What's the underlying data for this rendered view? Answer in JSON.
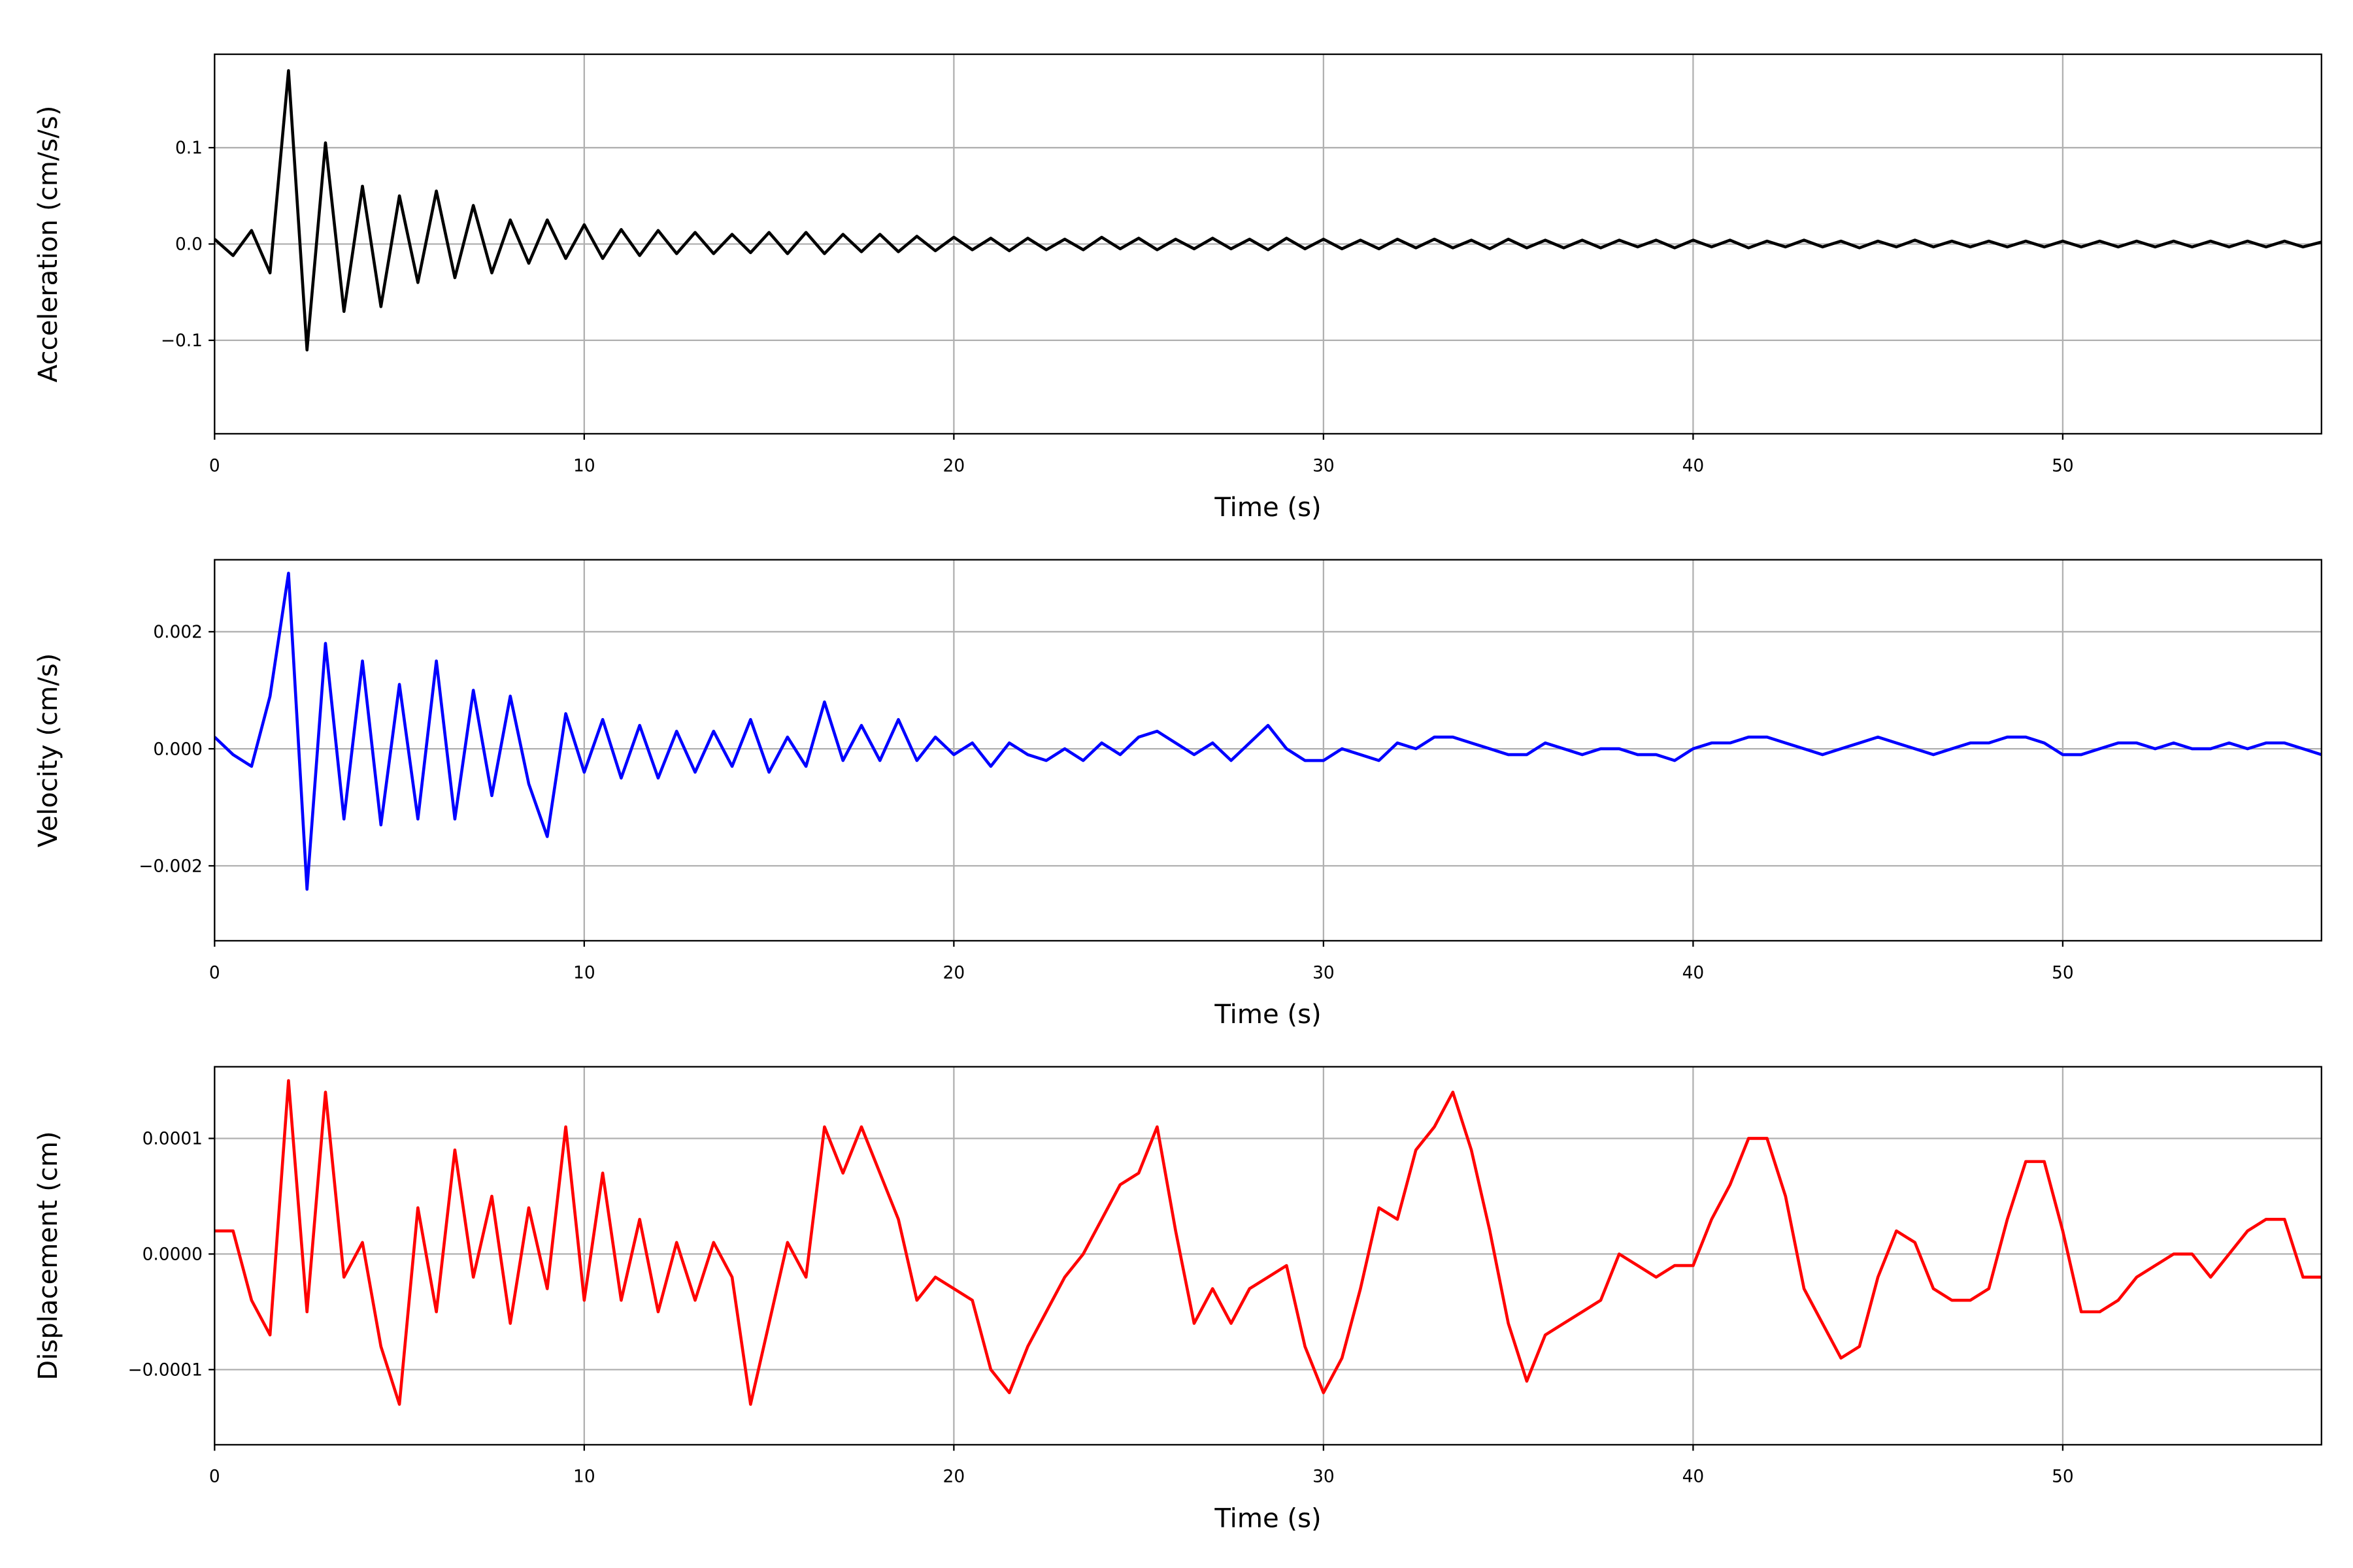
{
  "chart_data": [
    {
      "type": "line",
      "x_label": "Time (s)",
      "y_label": "Acceleration (cm/s/s)",
      "color": "#000000",
      "grid": true,
      "xlim": [
        0,
        57
      ],
      "ylim": [
        -0.197,
        0.197
      ],
      "xticks": [
        0,
        10,
        20,
        30,
        40,
        50
      ],
      "yticks": [
        {
          "value": -0.1,
          "label": "−0.1"
        },
        {
          "value": 0,
          "label": "0.0"
        },
        0.1
      ],
      "x": [
        0,
        0.5,
        1,
        1.5,
        2,
        2.5,
        3,
        3.5,
        4,
        4.5,
        5,
        5.5,
        6,
        6.5,
        7,
        7.5,
        8,
        8.5,
        9,
        9.5,
        10,
        10.5,
        11,
        11.5,
        12,
        12.5,
        13,
        13.5,
        14,
        14.5,
        15,
        15.5,
        16,
        16.5,
        17,
        17.5,
        18,
        18.5,
        19,
        19.5,
        20,
        20.5,
        21,
        21.5,
        22,
        22.5,
        23,
        23.5,
        24,
        24.5,
        25,
        25.5,
        26,
        26.5,
        27,
        27.5,
        28,
        28.5,
        29,
        29.5,
        30,
        30.5,
        31,
        31.5,
        32,
        32.5,
        33,
        33.5,
        34,
        34.5,
        35,
        35.5,
        36,
        36.5,
        37,
        37.5,
        38,
        38.5,
        39,
        39.5,
        40,
        40.5,
        41,
        41.5,
        42,
        42.5,
        43,
        43.5,
        44,
        44.5,
        45,
        45.5,
        46,
        46.5,
        47,
        47.5,
        48,
        48.5,
        49,
        49.5,
        50,
        50.5,
        51,
        51.5,
        52,
        52.5,
        53,
        53.5,
        54,
        54.5,
        55,
        55.5,
        56,
        56.5,
        57
      ],
      "values": [
        0.005,
        -0.012,
        0.014,
        -0.03,
        0.18,
        -0.11,
        0.105,
        -0.07,
        0.06,
        -0.065,
        0.05,
        -0.04,
        0.055,
        -0.035,
        0.04,
        -0.03,
        0.025,
        -0.02,
        0.025,
        -0.015,
        0.02,
        -0.015,
        0.015,
        -0.012,
        0.014,
        -0.01,
        0.012,
        -0.01,
        0.01,
        -0.009,
        0.012,
        -0.01,
        0.012,
        -0.01,
        0.01,
        -0.008,
        0.01,
        -0.008,
        0.008,
        -0.007,
        0.007,
        -0.006,
        0.006,
        -0.007,
        0.006,
        -0.006,
        0.005,
        -0.006,
        0.007,
        -0.005,
        0.006,
        -0.006,
        0.005,
        -0.005,
        0.006,
        -0.005,
        0.005,
        -0.006,
        0.006,
        -0.005,
        0.005,
        -0.005,
        0.004,
        -0.005,
        0.005,
        -0.004,
        0.005,
        -0.004,
        0.004,
        -0.005,
        0.005,
        -0.004,
        0.004,
        -0.004,
        0.004,
        -0.004,
        0.004,
        -0.003,
        0.004,
        -0.004,
        0.004,
        -0.003,
        0.004,
        -0.004,
        0.003,
        -0.003,
        0.004,
        -0.003,
        0.003,
        -0.004,
        0.003,
        -0.003,
        0.004,
        -0.003,
        0.003,
        -0.003,
        0.003,
        -0.003,
        0.003,
        -0.003,
        0.003,
        -0.003,
        0.003,
        -0.003,
        0.003,
        -0.003,
        0.003,
        -0.003,
        0.003,
        -0.003,
        0.003,
        -0.003,
        0.003,
        -0.003,
        0.002
      ]
    },
    {
      "type": "line",
      "x_label": "Time (s)",
      "y_label": "Velocity (cm/s)",
      "color": "#0000ff",
      "grid": true,
      "xlim": [
        0,
        57
      ],
      "ylim": [
        -0.00328,
        0.00323
      ],
      "xticks": [
        0,
        10,
        20,
        30,
        40,
        50
      ],
      "yticks": [
        {
          "value": -0.002,
          "label": "−0.002"
        },
        {
          "value": 0,
          "label": "0.000"
        },
        0.002
      ],
      "x": [
        0,
        0.5,
        1,
        1.5,
        2,
        2.5,
        3,
        3.5,
        4,
        4.5,
        5,
        5.5,
        6,
        6.5,
        7,
        7.5,
        8,
        8.5,
        9,
        9.5,
        10,
        10.5,
        11,
        11.5,
        12,
        12.5,
        13,
        13.5,
        14,
        14.5,
        15,
        15.5,
        16,
        16.5,
        17,
        17.5,
        18,
        18.5,
        19,
        19.5,
        20,
        20.5,
        21,
        21.5,
        22,
        22.5,
        23,
        23.5,
        24,
        24.5,
        25,
        25.5,
        26,
        26.5,
        27,
        27.5,
        28,
        28.5,
        29,
        29.5,
        30,
        30.5,
        31,
        31.5,
        32,
        32.5,
        33,
        33.5,
        34,
        34.5,
        35,
        35.5,
        36,
        36.5,
        37,
        37.5,
        38,
        38.5,
        39,
        39.5,
        40,
        40.5,
        41,
        41.5,
        42,
        42.5,
        43,
        43.5,
        44,
        44.5,
        45,
        45.5,
        46,
        46.5,
        47,
        47.5,
        48,
        48.5,
        49,
        49.5,
        50,
        50.5,
        51,
        51.5,
        52,
        52.5,
        53,
        53.5,
        54,
        54.5,
        55,
        55.5,
        56,
        56.5,
        57
      ],
      "values": [
        0.0002,
        -0.0001,
        -0.0003,
        0.0009,
        0.003,
        -0.0024,
        0.0018,
        -0.0012,
        0.0015,
        -0.0013,
        0.0011,
        -0.0012,
        0.0015,
        -0.0012,
        0.001,
        -0.0008,
        0.0009,
        -0.0006,
        -0.0015,
        0.0006,
        -0.0004,
        0.0005,
        -0.0005,
        0.0004,
        -0.0005,
        0.0003,
        -0.0004,
        0.0003,
        -0.0003,
        0.0005,
        -0.0004,
        0.0002,
        -0.0003,
        0.0008,
        -0.0002,
        0.0004,
        -0.0002,
        0.0005,
        -0.0002,
        0.0002,
        -0.0001,
        0.0001,
        -0.0003,
        0.0001,
        -0.0001,
        -0.0002,
        0,
        -0.0002,
        0.0001,
        -0.0001,
        0.0002,
        0.0003,
        0.0001,
        -0.0001,
        0.0001,
        -0.0002,
        0.0001,
        0.0004,
        0,
        -0.0002,
        -0.0002,
        0,
        -0.0001,
        -0.0002,
        0.0001,
        0,
        0.0002,
        0.0002,
        0.0001,
        0,
        -0.0001,
        -0.0001,
        0.0001,
        0,
        -0.0001,
        0,
        0,
        -0.0001,
        -0.0001,
        -0.0002,
        0,
        0.0001,
        0.0001,
        0.0002,
        0.0002,
        0.0001,
        0,
        -0.0001,
        0,
        0.0001,
        0.0002,
        0.0001,
        0,
        -0.0001,
        0,
        0.0001,
        0.0001,
        0.0002,
        0.0002,
        0.0001,
        -0.0001,
        -0.0001,
        0,
        0.0001,
        0.0001,
        0,
        0.0001,
        0,
        0,
        0.0001,
        0,
        0.0001,
        0.0001,
        0,
        -0.0001
      ]
    },
    {
      "type": "line",
      "x_label": "Time (s)",
      "y_label": "Displacement (cm)",
      "color": "#ff0000",
      "grid": true,
      "xlim": [
        0,
        57
      ],
      "ylim": [
        -0.000165,
        0.000162
      ],
      "xticks": [
        0,
        10,
        20,
        30,
        40,
        50
      ],
      "yticks": [
        {
          "value": -0.0001,
          "label": "−0.0001"
        },
        {
          "value": 0,
          "label": "0.0000"
        },
        0.0001
      ],
      "x": [
        0,
        0.5,
        1,
        1.5,
        2,
        2.5,
        3,
        3.5,
        4,
        4.5,
        5,
        5.5,
        6,
        6.5,
        7,
        7.5,
        8,
        8.5,
        9,
        9.5,
        10,
        10.5,
        11,
        11.5,
        12,
        12.5,
        13,
        13.5,
        14,
        14.5,
        15,
        15.5,
        16,
        16.5,
        17,
        17.5,
        18,
        18.5,
        19,
        19.5,
        20,
        20.5,
        21,
        21.5,
        22,
        22.5,
        23,
        23.5,
        24,
        24.5,
        25,
        25.5,
        26,
        26.5,
        27,
        27.5,
        28,
        28.5,
        29,
        29.5,
        30,
        30.5,
        31,
        31.5,
        32,
        32.5,
        33,
        33.5,
        34,
        34.5,
        35,
        35.5,
        36,
        36.5,
        37,
        37.5,
        38,
        38.5,
        39,
        39.5,
        40,
        40.5,
        41,
        41.5,
        42,
        42.5,
        43,
        43.5,
        44,
        44.5,
        45,
        45.5,
        46,
        46.5,
        47,
        47.5,
        48,
        48.5,
        49,
        49.5,
        50,
        50.5,
        51,
        51.5,
        52,
        52.5,
        53,
        53.5,
        54,
        54.5,
        55,
        55.5,
        56,
        56.5,
        57
      ],
      "values": [
        2e-05,
        2e-05,
        -4e-05,
        -7e-05,
        0.00015,
        -5e-05,
        0.00014,
        -2e-05,
        1e-05,
        -8e-05,
        -0.00013,
        4e-05,
        -5e-05,
        9e-05,
        -2e-05,
        5e-05,
        -6e-05,
        4e-05,
        -3e-05,
        0.00011,
        -4e-05,
        7e-05,
        -4e-05,
        3e-05,
        -5e-05,
        1e-05,
        -4e-05,
        1e-05,
        -2e-05,
        -0.00013,
        -6e-05,
        1e-05,
        -2e-05,
        0.00011,
        7e-05,
        0.00011,
        7e-05,
        3e-05,
        -4e-05,
        -2e-05,
        -3e-05,
        -4e-05,
        -0.0001,
        -0.00012,
        -8e-05,
        -5e-05,
        -2e-05,
        0,
        3e-05,
        6e-05,
        7e-05,
        0.00011,
        2e-05,
        -6e-05,
        -3e-05,
        -6e-05,
        -3e-05,
        -2e-05,
        -1e-05,
        -8e-05,
        -0.00012,
        -9e-05,
        -3e-05,
        4e-05,
        3e-05,
        9e-05,
        0.00011,
        0.00014,
        9e-05,
        2e-05,
        -6e-05,
        -0.00011,
        -7e-05,
        -6e-05,
        -5e-05,
        -4e-05,
        0,
        -1e-05,
        -2e-05,
        -1e-05,
        -1e-05,
        3e-05,
        6e-05,
        0.0001,
        0.0001,
        5e-05,
        -3e-05,
        -6e-05,
        -9e-05,
        -8e-05,
        -2e-05,
        2e-05,
        1e-05,
        -3e-05,
        -4e-05,
        -4e-05,
        -3e-05,
        3e-05,
        8e-05,
        8e-05,
        2e-05,
        -5e-05,
        -5e-05,
        -4e-05,
        -2e-05,
        -1e-05,
        0,
        0,
        -2e-05,
        0,
        2e-05,
        3e-05,
        3e-05,
        -2e-05,
        -2e-05
      ]
    }
  ]
}
